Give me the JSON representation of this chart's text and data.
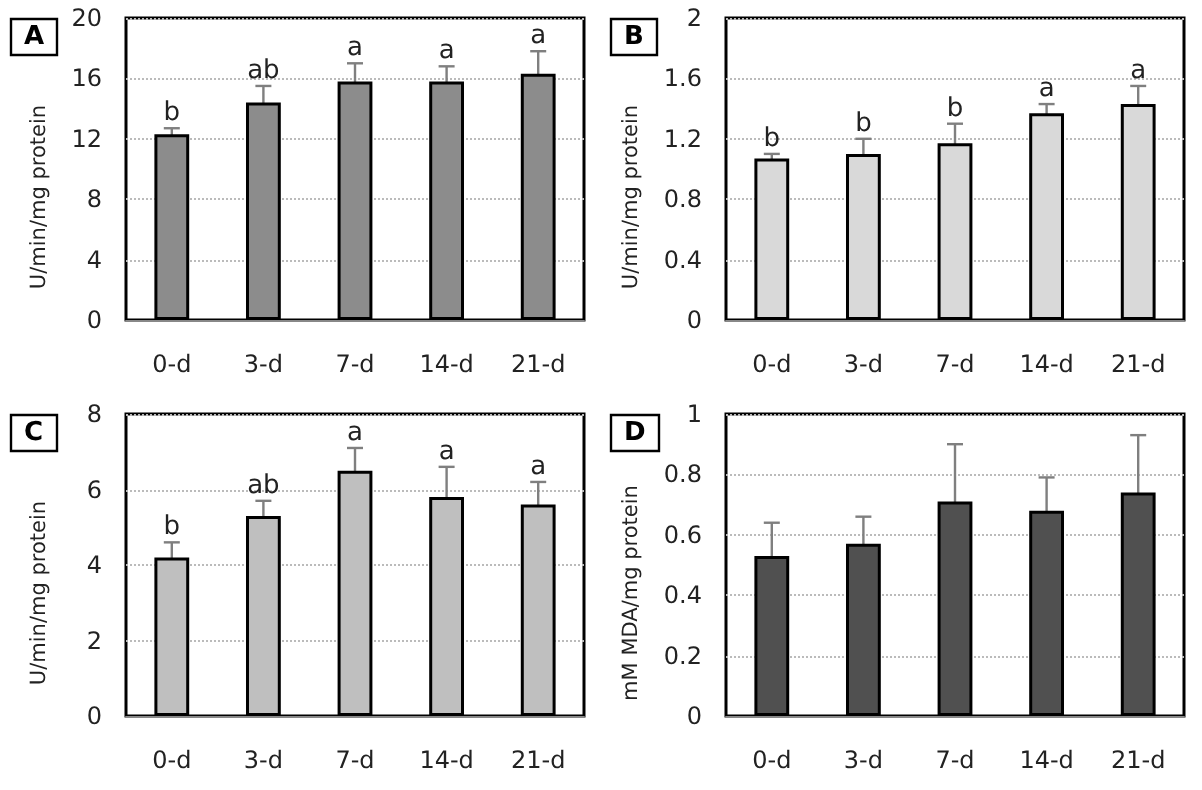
{
  "chart_data": [
    {
      "type": "bar",
      "title": "A",
      "ylabel": "U/min/mg protein",
      "categories": [
        "0-d",
        "3-d",
        "7-d",
        "14-d",
        "21-d"
      ],
      "values": [
        12.3,
        14.4,
        15.8,
        15.8,
        16.3
      ],
      "errors": [
        0.4,
        1.1,
        1.2,
        1.0,
        1.5
      ],
      "color": "#8c8c8c",
      "ylim": [
        0,
        20
      ],
      "yticks": [
        0,
        4,
        8,
        12,
        16,
        20
      ],
      "grid": "y",
      "annotations": [
        {
          "text": "b",
          "x": "0-d",
          "y": 12.7
        },
        {
          "text": "ab",
          "x": "3-d",
          "y": 15.5
        },
        {
          "text": "a",
          "x": "7-d",
          "y": 17.0
        },
        {
          "text": "a",
          "x": "14-d",
          "y": 16.8
        },
        {
          "text": "a",
          "x": "21-d",
          "y": 17.8
        }
      ]
    },
    {
      "type": "bar",
      "title": "B",
      "ylabel": "U/min/mg protein",
      "categories": [
        "0-d",
        "3-d",
        "7-d",
        "14-d",
        "21-d"
      ],
      "values": [
        1.07,
        1.1,
        1.17,
        1.37,
        1.43
      ],
      "errors": [
        0.03,
        0.1,
        0.13,
        0.06,
        0.12
      ],
      "color": "#d9d9d9",
      "ylim": [
        0,
        2
      ],
      "yticks": [
        0,
        0.4,
        0.8,
        1.2,
        1.6,
        2
      ],
      "grid": "y",
      "annotations": [
        {
          "text": "b",
          "x": "0-d",
          "y": 1.1
        },
        {
          "text": "b",
          "x": "3-d",
          "y": 1.2
        },
        {
          "text": "b",
          "x": "7-d",
          "y": 1.3
        },
        {
          "text": "a",
          "x": "14-d",
          "y": 1.43
        },
        {
          "text": "a",
          "x": "21-d",
          "y": 1.55
        }
      ]
    },
    {
      "type": "bar",
      "title": "C",
      "ylabel": "U/min/mg protein",
      "categories": [
        "0-d",
        "3-d",
        "7-d",
        "14-d",
        "21-d"
      ],
      "values": [
        4.2,
        5.3,
        6.5,
        5.8,
        5.6
      ],
      "errors": [
        0.4,
        0.4,
        0.6,
        0.8,
        0.6
      ],
      "color": "#bfbfbf",
      "ylim": [
        0,
        8
      ],
      "yticks": [
        0,
        2,
        4,
        6,
        8
      ],
      "grid": "y",
      "annotations": [
        {
          "text": "b",
          "x": "0-d",
          "y": 4.6
        },
        {
          "text": "ab",
          "x": "3-d",
          "y": 5.7
        },
        {
          "text": "a",
          "x": "7-d",
          "y": 7.1
        },
        {
          "text": "a",
          "x": "14-d",
          "y": 6.6
        },
        {
          "text": "a",
          "x": "21-d",
          "y": 6.2
        }
      ]
    },
    {
      "type": "bar",
      "title": "D",
      "ylabel": "mM MDA/mg protein",
      "categories": [
        "0-d",
        "3-d",
        "7-d",
        "14-d",
        "21-d"
      ],
      "values": [
        0.53,
        0.57,
        0.71,
        0.68,
        0.74
      ],
      "errors": [
        0.11,
        0.09,
        0.19,
        0.11,
        0.19
      ],
      "color": "#505050",
      "ylim": [
        0,
        1
      ],
      "yticks": [
        0,
        0.2,
        0.4,
        0.6,
        0.8,
        1
      ],
      "grid": "y"
    }
  ]
}
